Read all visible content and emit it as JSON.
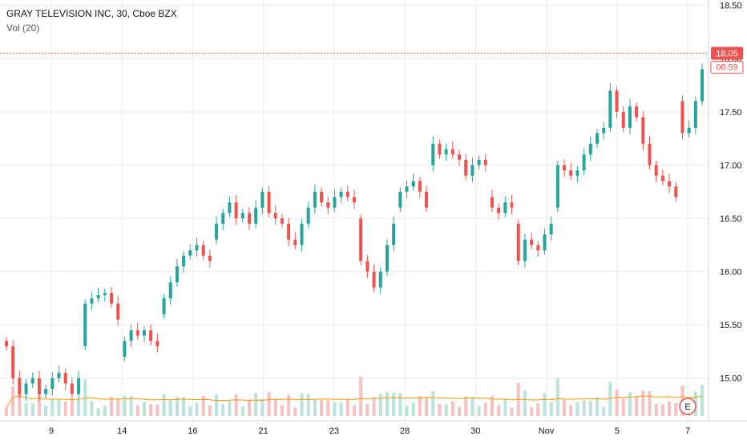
{
  "header": {
    "symbol_line": "GRAY TELEVISION INC, 30, Cboe BZX",
    "volume_line": "Vol (20)"
  },
  "price_badge": {
    "value": "18.05",
    "countdown": "08:59",
    "color": "#ef5350"
  },
  "earnings_marker": "E",
  "colors": {
    "up": "#26a69a",
    "down": "#ef5350",
    "vol_up": "#b9e3db",
    "vol_down": "#f6c1c1",
    "vol_ma": "#ff9800",
    "grid": "#e9ecef"
  },
  "chart_data": {
    "type": "candlestick",
    "title": "GRAY TELEVISION INC, 30, Cboe BZX",
    "y_axis": {
      "ticks": [
        "18.50",
        "18.00",
        "17.50",
        "17.00",
        "16.50",
        "16.00",
        "15.50",
        "15.00"
      ],
      "range": [
        14.6,
        18.55
      ]
    },
    "x_axis": {
      "labels": [
        "9",
        "14",
        "16",
        "21",
        "23",
        "28",
        "30",
        "Nov",
        "5",
        "7"
      ]
    },
    "last_price": 18.05,
    "grid": true,
    "volume_indicator": "Vol (20)",
    "segments": [
      {
        "start": 15.35,
        "points": [
          15.3,
          15.0,
          14.85,
          14.95,
          15.0,
          14.85,
          14.9,
          15.0,
          15.05,
          14.95,
          14.85,
          15.0
        ]
      },
      {
        "start": 15.3,
        "points": [
          15.7,
          15.75,
          15.78,
          15.8,
          15.7,
          15.55
        ]
      },
      {
        "start": 15.2,
        "points": [
          15.35,
          15.45,
          15.4,
          15.45,
          15.35,
          15.3
        ]
      },
      {
        "start": 15.6,
        "points": [
          15.75,
          15.9,
          16.05,
          16.15,
          16.2,
          16.25,
          16.15,
          16.1
        ]
      },
      {
        "start": 16.3,
        "points": [
          16.45,
          16.55,
          16.65,
          16.5,
          16.55,
          16.45,
          16.6,
          16.75,
          16.55,
          16.5,
          16.45,
          16.3,
          16.25,
          16.45,
          16.6,
          16.75,
          16.65,
          16.6,
          16.7,
          16.75,
          16.7,
          16.65
        ]
      },
      {
        "start": 16.5,
        "points": [
          16.1,
          16.0,
          15.85,
          16.0,
          16.25,
          16.45
        ]
      },
      {
        "start": 16.6,
        "points": [
          16.75,
          16.8,
          16.85,
          16.75,
          16.6
        ]
      },
      {
        "start": 17.0,
        "points": [
          17.2,
          17.1,
          17.15,
          17.1,
          17.05,
          16.9,
          17.0,
          17.05,
          17.0
        ]
      },
      {
        "start": 16.7,
        "points": [
          16.6,
          16.55,
          16.65,
          16.6
        ]
      },
      {
        "start": 16.45,
        "points": [
          16.1,
          16.3,
          16.25,
          16.2,
          16.35,
          16.45
        ]
      },
      {
        "start": 16.6,
        "points": [
          17.0,
          16.95,
          16.9,
          16.95,
          17.1,
          17.2,
          17.3,
          17.35,
          17.7,
          17.5,
          17.35,
          17.55,
          17.45,
          17.2,
          17.0,
          16.9,
          16.85,
          16.8,
          16.7
        ]
      },
      {
        "start": 17.6,
        "points": [
          17.3,
          17.35,
          17.6,
          17.9
        ]
      }
    ]
  }
}
